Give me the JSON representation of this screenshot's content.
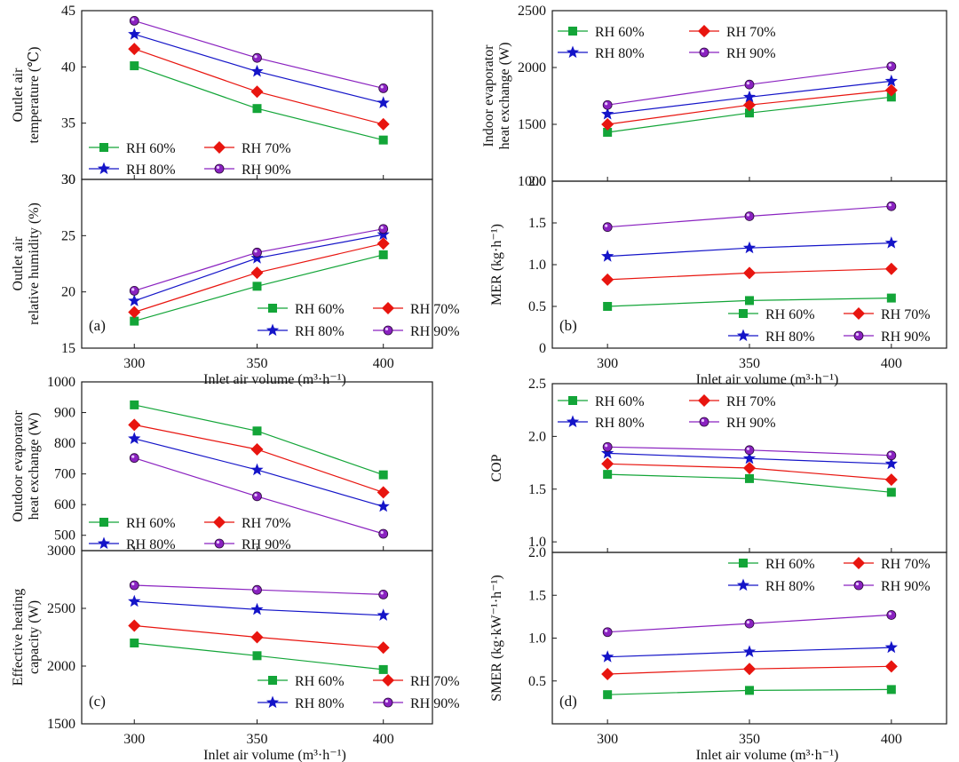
{
  "colors": {
    "RH 60%": "#13a538",
    "RH 70%": "#e8150f",
    "RH 80%": "#1414c8",
    "RH 90%": "#8a22c0",
    "frame": "#1a1a1a"
  },
  "markers": {
    "RH 60%": "square",
    "RH 70%": "diamond",
    "RH 80%": "star",
    "RH 90%": "circle"
  },
  "chart_data": [
    {
      "id": "a-top",
      "type": "line",
      "panel_label": "",
      "ylabel": [
        "Outlet air",
        "temperature (℃)"
      ],
      "xlabel": "",
      "ylim": [
        30,
        45
      ],
      "yticks": [
        "30",
        "35",
        "40",
        "45"
      ],
      "categories": [
        "300",
        "350",
        "400"
      ],
      "show_x_ticks": false,
      "legend": "bottom-left",
      "series": [
        {
          "name": "RH 60%",
          "values": [
            40.1,
            36.3,
            33.5
          ]
        },
        {
          "name": "RH 70%",
          "values": [
            41.6,
            37.8,
            34.9
          ]
        },
        {
          "name": "RH 80%",
          "values": [
            42.9,
            39.6,
            36.8
          ]
        },
        {
          "name": "RH 90%",
          "values": [
            44.1,
            40.8,
            38.1
          ]
        }
      ]
    },
    {
      "id": "a-bottom",
      "type": "line",
      "panel_label": "(a)",
      "ylabel": [
        "Outlet air",
        "relative humidity (%)"
      ],
      "xlabel": "Inlet air volume (m³·h⁻¹)",
      "ylim": [
        15,
        30
      ],
      "yticks": [
        "15",
        "20",
        "25",
        "30"
      ],
      "categories": [
        "300",
        "350",
        "400"
      ],
      "show_x_ticks": true,
      "legend": "bottom-right",
      "series": [
        {
          "name": "RH 60%",
          "values": [
            17.4,
            20.5,
            23.3
          ]
        },
        {
          "name": "RH 70%",
          "values": [
            18.2,
            21.7,
            24.3
          ]
        },
        {
          "name": "RH 80%",
          "values": [
            19.2,
            23.0,
            25.1
          ]
        },
        {
          "name": "RH 90%",
          "values": [
            20.1,
            23.5,
            25.6
          ]
        }
      ]
    },
    {
      "id": "b-top",
      "type": "line",
      "panel_label": "",
      "ylabel": [
        "Indoor evaporator",
        "heat exchange (W)"
      ],
      "xlabel": "",
      "ylim": [
        1000,
        2500
      ],
      "yticks": [
        "1000",
        "1500",
        "2000",
        "2500"
      ],
      "categories": [
        "300",
        "350",
        "400"
      ],
      "show_x_ticks": false,
      "legend": "top-left",
      "series": [
        {
          "name": "RH 60%",
          "values": [
            1430,
            1600,
            1740
          ]
        },
        {
          "name": "RH 70%",
          "values": [
            1500,
            1670,
            1800
          ]
        },
        {
          "name": "RH 80%",
          "values": [
            1590,
            1740,
            1880
          ]
        },
        {
          "name": "RH 90%",
          "values": [
            1670,
            1850,
            2010
          ]
        }
      ]
    },
    {
      "id": "b-bottom",
      "type": "line",
      "panel_label": "(b)",
      "ylabel": [
        "MER (kg·h⁻¹)"
      ],
      "xlabel": "Inlet air volume (m³·h⁻¹)",
      "ylim": [
        0,
        2.0
      ],
      "yticks": [
        "0",
        "0.5",
        "1.0",
        "1.5",
        "2.0"
      ],
      "categories": [
        "300",
        "350",
        "400"
      ],
      "show_x_ticks": true,
      "legend": "bottom-right",
      "series": [
        {
          "name": "RH 60%",
          "values": [
            0.5,
            0.57,
            0.6
          ]
        },
        {
          "name": "RH 70%",
          "values": [
            0.82,
            0.9,
            0.95
          ]
        },
        {
          "name": "RH 80%",
          "values": [
            1.1,
            1.2,
            1.26
          ]
        },
        {
          "name": "RH 90%",
          "values": [
            1.45,
            1.58,
            1.7
          ]
        }
      ]
    },
    {
      "id": "c-top",
      "type": "line",
      "panel_label": "",
      "ylabel": [
        "Outdoor evaporator",
        "heat exchange (W)"
      ],
      "xlabel": "",
      "ylim": [
        450,
        1000
      ],
      "yticks": [
        "500",
        "600",
        "700",
        "800",
        "900",
        "1000"
      ],
      "categories": [
        "300",
        "350",
        "400"
      ],
      "show_x_ticks": false,
      "legend": "bottom-left",
      "series": [
        {
          "name": "RH 60%",
          "values": [
            925,
            840,
            697
          ]
        },
        {
          "name": "RH 70%",
          "values": [
            860,
            780,
            640
          ]
        },
        {
          "name": "RH 80%",
          "values": [
            815,
            713,
            594
          ]
        },
        {
          "name": "RH 90%",
          "values": [
            752,
            627,
            505
          ]
        }
      ]
    },
    {
      "id": "c-bottom",
      "type": "line",
      "panel_label": "(c)",
      "ylabel": [
        "Effective heating",
        "capacity (W)"
      ],
      "xlabel": "Inlet air volume (m³·h⁻¹)",
      "ylim": [
        1500,
        3000
      ],
      "yticks": [
        "1500",
        "2000",
        "2500",
        "3000"
      ],
      "categories": [
        "300",
        "350",
        "400"
      ],
      "show_x_ticks": true,
      "legend": "bottom-right",
      "series": [
        {
          "name": "RH 60%",
          "values": [
            2200,
            2090,
            1970
          ]
        },
        {
          "name": "RH 70%",
          "values": [
            2350,
            2250,
            2160
          ]
        },
        {
          "name": "RH 80%",
          "values": [
            2560,
            2490,
            2440
          ]
        },
        {
          "name": "RH 90%",
          "values": [
            2700,
            2660,
            2620
          ]
        }
      ]
    },
    {
      "id": "d-top",
      "type": "line",
      "panel_label": "",
      "ylabel": [
        "COP"
      ],
      "xlabel": "",
      "ylim": [
        0.9,
        2.5
      ],
      "yticks": [
        "1.0",
        "1.5",
        "2.0",
        "2.5"
      ],
      "categories": [
        "300",
        "350",
        "400"
      ],
      "show_x_ticks": false,
      "legend": "top-left",
      "series": [
        {
          "name": "RH 60%",
          "values": [
            1.64,
            1.6,
            1.47
          ]
        },
        {
          "name": "RH 70%",
          "values": [
            1.74,
            1.7,
            1.59
          ]
        },
        {
          "name": "RH 80%",
          "values": [
            1.84,
            1.79,
            1.74
          ]
        },
        {
          "name": "RH 90%",
          "values": [
            1.9,
            1.87,
            1.82
          ]
        }
      ]
    },
    {
      "id": "d-bottom",
      "type": "line",
      "panel_label": "(d)",
      "ylabel": [
        "SMER (kg·kW⁻¹·h⁻¹)"
      ],
      "xlabel": "Inlet air volume (m³·h⁻¹)",
      "ylim": [
        0,
        2.0
      ],
      "yticks": [
        "0.5",
        "1.0",
        "1.5",
        "2.0"
      ],
      "categories": [
        "300",
        "350",
        "400"
      ],
      "show_x_ticks": true,
      "legend": "top-right",
      "series": [
        {
          "name": "RH 60%",
          "values": [
            0.34,
            0.39,
            0.4
          ]
        },
        {
          "name": "RH 70%",
          "values": [
            0.58,
            0.64,
            0.67
          ]
        },
        {
          "name": "RH 80%",
          "values": [
            0.78,
            0.84,
            0.89
          ]
        },
        {
          "name": "RH 90%",
          "values": [
            1.07,
            1.17,
            1.27
          ]
        }
      ]
    }
  ]
}
